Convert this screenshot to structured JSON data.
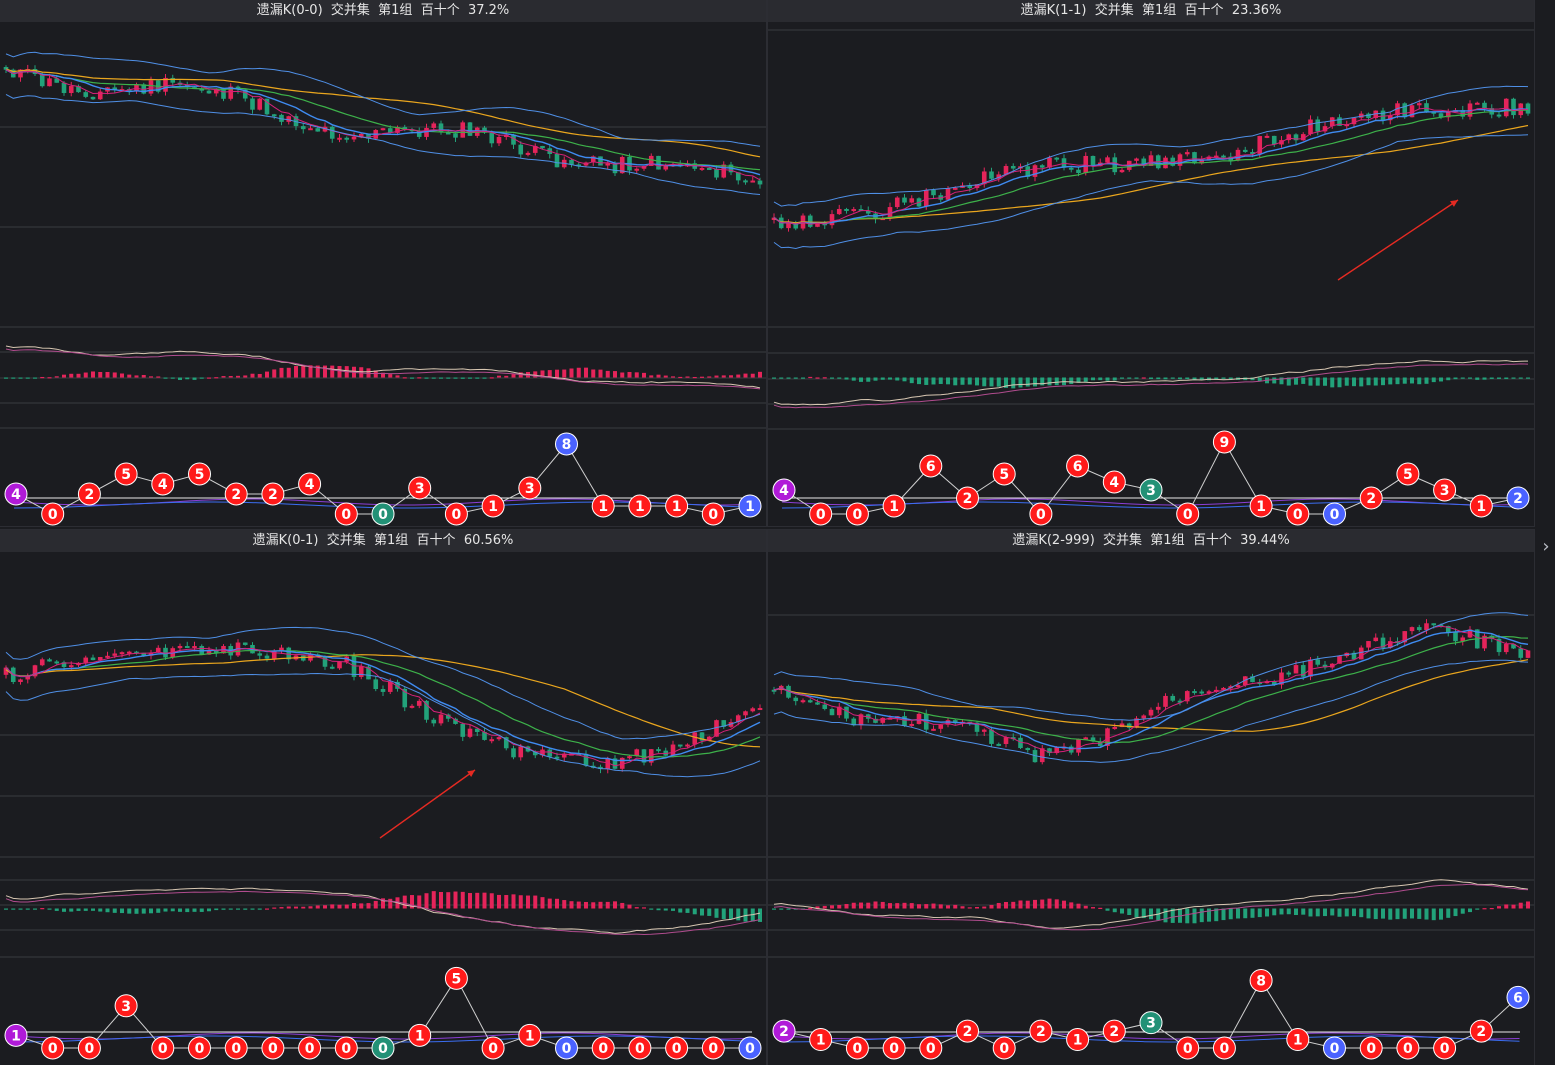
{
  "colors": {
    "bg": "#1b1c20",
    "grid": "#3a3b40",
    "up": "#e5245a",
    "down": "#22a27a",
    "ma5": "#d6217a",
    "ma10": "#3f8bf0",
    "ma20": "#3db14a",
    "ma60": "#eaa61e",
    "boll": "#4f8fe6",
    "red_ball": "#ff1a1a",
    "green_ball": "#229176",
    "blue_ball": "#4a62ff",
    "purple_ball": "#b01ad8",
    "arrow": "#e52a22",
    "base_line": "#e8e8e8"
  },
  "icons": {
    "next": "chevron-right-icon"
  },
  "nav": {
    "next_label": "›"
  },
  "panels": [
    {
      "title": "遗漏K(0-0)  交并集  第1组  百十个  37.2%",
      "chart_data": {
        "type": "candlestick",
        "trend": "down",
        "balls": [
          {
            "v": "4",
            "c": "purple",
            "lvl": 1
          },
          {
            "v": "0",
            "c": "red",
            "lvl": 0
          },
          {
            "v": "2",
            "c": "red",
            "lvl": 1
          },
          {
            "v": "5",
            "c": "red",
            "lvl": 2
          },
          {
            "v": "4",
            "c": "red",
            "lvl": 1.5
          },
          {
            "v": "5",
            "c": "red",
            "lvl": 2
          },
          {
            "v": "2",
            "c": "red",
            "lvl": 1
          },
          {
            "v": "2",
            "c": "red",
            "lvl": 1
          },
          {
            "v": "4",
            "c": "red",
            "lvl": 1.5
          },
          {
            "v": "0",
            "c": "red",
            "lvl": 0
          },
          {
            "v": "0",
            "c": "green",
            "lvl": 0
          },
          {
            "v": "3",
            "c": "red",
            "lvl": 1.3
          },
          {
            "v": "0",
            "c": "red",
            "lvl": 0
          },
          {
            "v": "1",
            "c": "red",
            "lvl": 0.4
          },
          {
            "v": "3",
            "c": "red",
            "lvl": 1.3
          },
          {
            "v": "8",
            "c": "blue",
            "lvl": 3.5
          },
          {
            "v": "1",
            "c": "red",
            "lvl": 0.4
          },
          {
            "v": "1",
            "c": "red",
            "lvl": 0.4
          },
          {
            "v": "1",
            "c": "red",
            "lvl": 0.4
          },
          {
            "v": "0",
            "c": "red",
            "lvl": 0
          },
          {
            "v": "1",
            "c": "blue",
            "lvl": 0.4
          }
        ]
      }
    },
    {
      "title": "遗漏K(1-1)  交并集  第1组  百十个  23.36%",
      "chart_data": {
        "type": "candlestick",
        "trend": "up",
        "balls": [
          {
            "v": "4",
            "c": "purple",
            "lvl": 1.2
          },
          {
            "v": "0",
            "c": "red",
            "lvl": 0
          },
          {
            "v": "0",
            "c": "red",
            "lvl": 0
          },
          {
            "v": "1",
            "c": "red",
            "lvl": 0.4
          },
          {
            "v": "6",
            "c": "red",
            "lvl": 2.4
          },
          {
            "v": "2",
            "c": "red",
            "lvl": 0.8
          },
          {
            "v": "5",
            "c": "red",
            "lvl": 2
          },
          {
            "v": "0",
            "c": "red",
            "lvl": 0
          },
          {
            "v": "6",
            "c": "red",
            "lvl": 2.4
          },
          {
            "v": "4",
            "c": "red",
            "lvl": 1.6
          },
          {
            "v": "3",
            "c": "green",
            "lvl": 1.2
          },
          {
            "v": "0",
            "c": "red",
            "lvl": 0
          },
          {
            "v": "9",
            "c": "red",
            "lvl": 3.6
          },
          {
            "v": "1",
            "c": "red",
            "lvl": 0.4
          },
          {
            "v": "0",
            "c": "red",
            "lvl": 0
          },
          {
            "v": "0",
            "c": "blue",
            "lvl": 0
          },
          {
            "v": "2",
            "c": "red",
            "lvl": 0.8
          },
          {
            "v": "5",
            "c": "red",
            "lvl": 2
          },
          {
            "v": "3",
            "c": "red",
            "lvl": 1.2
          },
          {
            "v": "1",
            "c": "red",
            "lvl": 0.4
          },
          {
            "v": "2",
            "c": "blue",
            "lvl": 0.8
          }
        ]
      }
    },
    {
      "title": "遗漏K(0-1)  交并集  第1组  百十个  60.56%",
      "chart_data": {
        "type": "candlestick",
        "trend": "wave",
        "balls": [
          {
            "v": "1",
            "c": "purple",
            "lvl": 0.6
          },
          {
            "v": "0",
            "c": "red",
            "lvl": 0
          },
          {
            "v": "0",
            "c": "red",
            "lvl": 0
          },
          {
            "v": "3",
            "c": "red",
            "lvl": 2
          },
          {
            "v": "0",
            "c": "red",
            "lvl": 0
          },
          {
            "v": "0",
            "c": "red",
            "lvl": 0
          },
          {
            "v": "0",
            "c": "red",
            "lvl": 0
          },
          {
            "v": "0",
            "c": "red",
            "lvl": 0
          },
          {
            "v": "0",
            "c": "red",
            "lvl": 0
          },
          {
            "v": "0",
            "c": "red",
            "lvl": 0
          },
          {
            "v": "0",
            "c": "green",
            "lvl": 0
          },
          {
            "v": "1",
            "c": "red",
            "lvl": 0.6
          },
          {
            "v": "5",
            "c": "red",
            "lvl": 3.3
          },
          {
            "v": "0",
            "c": "red",
            "lvl": 0
          },
          {
            "v": "1",
            "c": "red",
            "lvl": 0.6
          },
          {
            "v": "0",
            "c": "blue",
            "lvl": 0
          },
          {
            "v": "0",
            "c": "red",
            "lvl": 0
          },
          {
            "v": "0",
            "c": "red",
            "lvl": 0
          },
          {
            "v": "0",
            "c": "red",
            "lvl": 0
          },
          {
            "v": "0",
            "c": "red",
            "lvl": 0
          },
          {
            "v": "0",
            "c": "blue",
            "lvl": 0
          }
        ]
      }
    },
    {
      "title": "遗漏K(2-999)  交并集  第1组  百十个  39.44%",
      "chart_data": {
        "type": "candlestick",
        "trend": "valley",
        "balls": [
          {
            "v": "2",
            "c": "purple",
            "lvl": 0.8
          },
          {
            "v": "1",
            "c": "red",
            "lvl": 0.4
          },
          {
            "v": "0",
            "c": "red",
            "lvl": 0
          },
          {
            "v": "0",
            "c": "red",
            "lvl": 0
          },
          {
            "v": "0",
            "c": "red",
            "lvl": 0
          },
          {
            "v": "2",
            "c": "red",
            "lvl": 0.8
          },
          {
            "v": "0",
            "c": "red",
            "lvl": 0
          },
          {
            "v": "2",
            "c": "red",
            "lvl": 0.8
          },
          {
            "v": "1",
            "c": "red",
            "lvl": 0.4
          },
          {
            "v": "2",
            "c": "red",
            "lvl": 0.8
          },
          {
            "v": "3",
            "c": "green",
            "lvl": 1.2
          },
          {
            "v": "0",
            "c": "red",
            "lvl": 0
          },
          {
            "v": "0",
            "c": "red",
            "lvl": 0
          },
          {
            "v": "8",
            "c": "red",
            "lvl": 3.2
          },
          {
            "v": "1",
            "c": "red",
            "lvl": 0.4
          },
          {
            "v": "0",
            "c": "blue",
            "lvl": 0
          },
          {
            "v": "0",
            "c": "red",
            "lvl": 0
          },
          {
            "v": "0",
            "c": "red",
            "lvl": 0
          },
          {
            "v": "0",
            "c": "red",
            "lvl": 0
          },
          {
            "v": "2",
            "c": "red",
            "lvl": 0.8
          },
          {
            "v": "6",
            "c": "blue",
            "lvl": 2.4
          }
        ]
      }
    }
  ]
}
